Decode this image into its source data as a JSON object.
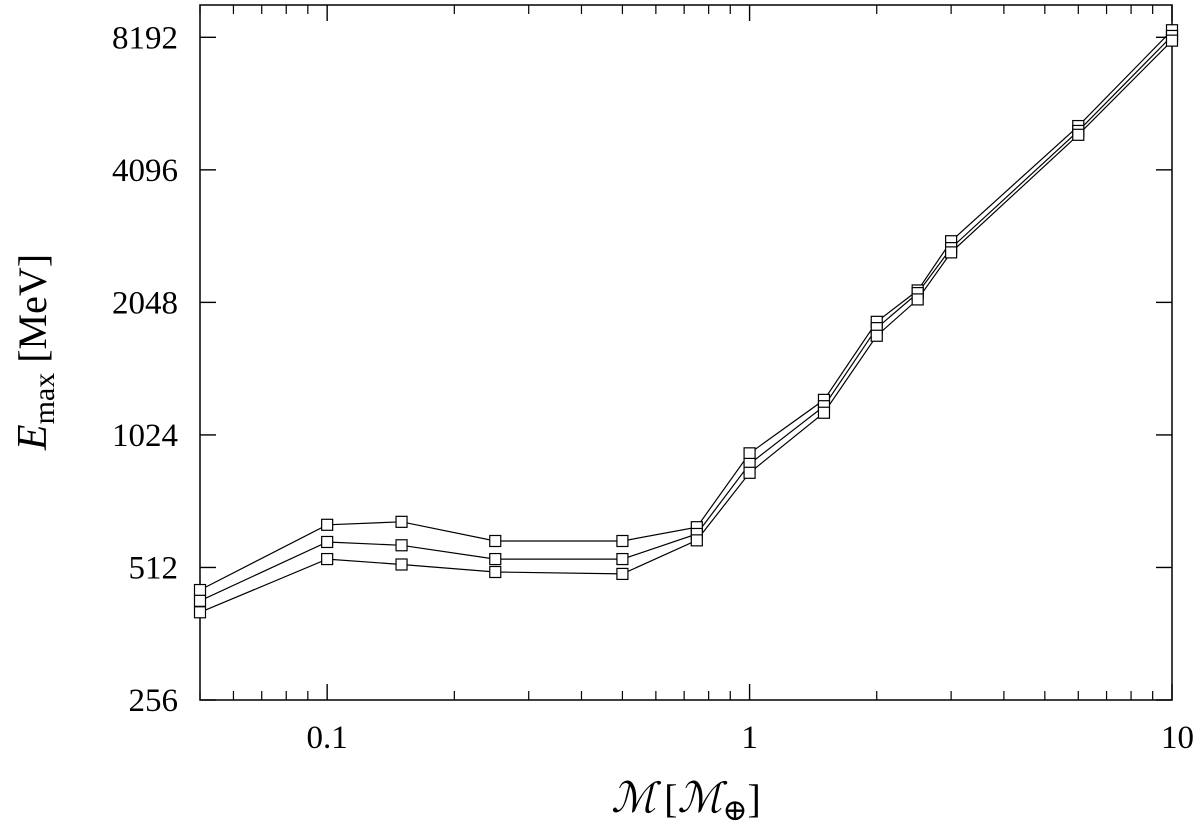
{
  "chart_data": {
    "type": "line",
    "title": "",
    "xscale": "log",
    "yscale": "log2",
    "xlim": [
      0.05,
      10
    ],
    "ylim": [
      256,
      9700
    ],
    "xticks": [
      0.1,
      1,
      10
    ],
    "xtick_labels": [
      "0.1",
      "1",
      "10"
    ],
    "yticks": [
      256,
      512,
      1024,
      2048,
      4096,
      8192
    ],
    "ytick_labels": [
      "256",
      "512",
      "1024",
      "2048",
      "4096",
      "8192"
    ],
    "xlabel": {
      "symbol": "ℳ",
      "bracket_open": "[",
      "unit_symbol": "ℳ",
      "unit_subscript": "⊕",
      "bracket_close": "]"
    },
    "ylabel": {
      "symbol": "E",
      "subscript": "max",
      "unit": "[MeV]"
    },
    "grid": false,
    "legend": "none",
    "marker": "open-square",
    "line_color": "#000000",
    "x": [
      0.05,
      0.1,
      0.15,
      0.25,
      0.5,
      0.75,
      1,
      1.5,
      2,
      2.5,
      3,
      6,
      10
    ],
    "series": [
      {
        "values": [
          455,
          640,
          650,
          588,
          588,
          632,
          930,
          1230,
          1850,
          2180,
          2820,
          5150,
          8500
        ]
      },
      {
        "values": [
          430,
          585,
          575,
          535,
          535,
          610,
          880,
          1190,
          1790,
          2150,
          2720,
          5020,
          8250
        ]
      },
      {
        "values": [
          405,
          535,
          520,
          500,
          495,
          590,
          840,
          1150,
          1720,
          2080,
          2660,
          4920,
          8050
        ]
      }
    ]
  }
}
